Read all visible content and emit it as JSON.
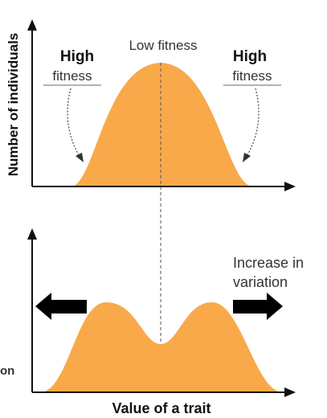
{
  "diagram": {
    "y_axis_label": "Number of individuals",
    "x_axis_label": "Value of a trait",
    "top_panel": {
      "center_label": "Low fitness",
      "left_label_line1": "High",
      "left_label_line2": "fitness",
      "right_label_line1": "High",
      "right_label_line2": "fitness"
    },
    "bottom_panel": {
      "right_label_line1": "Increase in",
      "right_label_line2": "variation",
      "cropped_left_label": "on"
    }
  },
  "colors": {
    "curve_fill": "#F9A94A",
    "axis": "#111111",
    "arrow": "#000000",
    "dashed_line": "#555555"
  }
}
